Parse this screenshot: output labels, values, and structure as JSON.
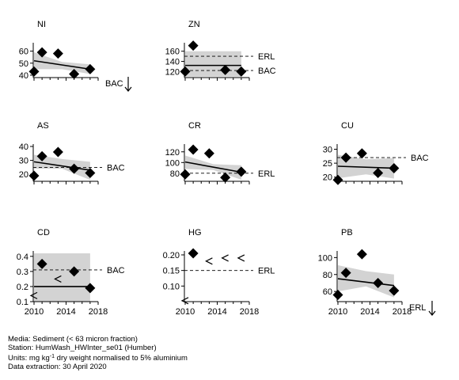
{
  "chart_data": [
    {
      "type": "scatter",
      "title": "NI",
      "ylim": [
        38,
        65
      ],
      "yticks": [
        40,
        50,
        60
      ],
      "xlim": [
        2009.9,
        2018
      ],
      "xticks": [],
      "points": [
        [
          2010,
          43
        ],
        [
          2011,
          59
        ],
        [
          2013,
          58
        ],
        [
          2015,
          41
        ],
        [
          2017,
          45
        ]
      ],
      "trend": [
        [
          2010,
          52
        ],
        [
          2017,
          45
        ]
      ],
      "band_upper": [
        [
          2010,
          59
        ],
        [
          2013.5,
          51
        ],
        [
          2017,
          49
        ]
      ],
      "band_lower": [
        [
          2010,
          45
        ],
        [
          2013.5,
          45
        ],
        [
          2017,
          41
        ]
      ],
      "ref_lines": [],
      "ref_label": "BAC",
      "arrow": "down"
    },
    {
      "type": "scatter",
      "title": "ZN",
      "ylim": [
        108,
        172
      ],
      "yticks": [
        120,
        140,
        160
      ],
      "xlim": [
        2009.9,
        2018
      ],
      "xticks": [],
      "points": [
        [
          2010,
          120
        ],
        [
          2011,
          171
        ],
        [
          2015,
          123
        ],
        [
          2017,
          120
        ]
      ],
      "trend": [
        [
          2010,
          132
        ],
        [
          2017,
          132
        ]
      ],
      "band_upper": [
        [
          2010,
          160
        ],
        [
          2017,
          160
        ]
      ],
      "band_lower": [
        [
          2010,
          110
        ],
        [
          2017,
          110
        ]
      ],
      "ref_lines": [
        {
          "label": "ERL",
          "value": 150
        },
        {
          "label": "BAC",
          "value": 122
        }
      ]
    },
    {
      "type": "scatter",
      "title": "AS",
      "ylim": [
        15,
        40
      ],
      "yticks": [
        20,
        30,
        40
      ],
      "xlim": [
        2009.9,
        2018
      ],
      "xticks": [],
      "points": [
        [
          2010,
          19
        ],
        [
          2011,
          33
        ],
        [
          2013,
          36
        ],
        [
          2015,
          24
        ],
        [
          2017,
          21
        ]
      ],
      "trend": [
        [
          2010,
          29
        ],
        [
          2017,
          23
        ]
      ],
      "band_upper": [
        [
          2010,
          34
        ],
        [
          2013.5,
          31
        ],
        [
          2017,
          29
        ]
      ],
      "band_lower": [
        [
          2010,
          24
        ],
        [
          2013.5,
          24
        ],
        [
          2017,
          16
        ]
      ],
      "ref_lines": [
        {
          "label": "BAC",
          "value": 25
        }
      ]
    },
    {
      "type": "scatter",
      "title": "CR",
      "ylim": [
        65,
        130
      ],
      "yticks": [
        80,
        100,
        120
      ],
      "xlim": [
        2009.9,
        2018
      ],
      "xticks": [],
      "points": [
        [
          2010,
          78
        ],
        [
          2011,
          124
        ],
        [
          2013,
          117
        ],
        [
          2015,
          72
        ],
        [
          2017,
          83
        ]
      ],
      "trend": [
        [
          2010,
          101
        ],
        [
          2017,
          82
        ]
      ],
      "band_upper": [
        [
          2010,
          113
        ],
        [
          2013.5,
          97
        ],
        [
          2017,
          95
        ]
      ],
      "band_lower": [
        [
          2010,
          88
        ],
        [
          2013.5,
          86
        ],
        [
          2017,
          68
        ]
      ],
      "ref_lines": [
        {
          "label": "ERL",
          "value": 80
        }
      ]
    },
    {
      "type": "scatter",
      "title": "CU",
      "ylim": [
        18.5,
        31
      ],
      "yticks": [
        20,
        25,
        30
      ],
      "xlim": [
        2009.9,
        2018
      ],
      "xticks": [],
      "points": [
        [
          2010,
          19
        ],
        [
          2011,
          27
        ],
        [
          2013,
          28.5
        ],
        [
          2015,
          21.5
        ],
        [
          2017,
          23.2
        ]
      ],
      "trend": [
        [
          2010,
          23.9
        ],
        [
          2017,
          23.2
        ]
      ],
      "band_upper": [
        [
          2010,
          28
        ],
        [
          2013.5,
          26.4
        ],
        [
          2017,
          26.8
        ]
      ],
      "band_lower": [
        [
          2010,
          19.6
        ],
        [
          2013.5,
          21
        ],
        [
          2017,
          19.5
        ]
      ],
      "ref_lines": [
        {
          "label": "BAC",
          "value": 27
        }
      ]
    },
    {
      "type": "scatter",
      "title": "CD",
      "ylim": [
        0.1,
        0.42
      ],
      "yticks": [
        0.1,
        0.2,
        0.3,
        0.4
      ],
      "ytick_labels": [
        "0.1",
        "0.2",
        "0.3",
        "0.4"
      ],
      "xlim": [
        2009.9,
        2018
      ],
      "xticks": [
        2010,
        2014,
        2018
      ],
      "points": [
        [
          2011,
          0.35
        ],
        [
          2015,
          0.3
        ],
        [
          2017,
          0.19
        ]
      ],
      "less_than": [
        [
          2013,
          0.25
        ],
        [
          2010,
          0.14
        ]
      ],
      "trend": [
        [
          2010,
          0.2
        ],
        [
          2017,
          0.2
        ]
      ],
      "band_upper": [
        [
          2010,
          0.42
        ],
        [
          2017,
          0.42
        ]
      ],
      "band_lower": [
        [
          2010,
          0.1
        ],
        [
          2017,
          0.1
        ]
      ],
      "ref_lines": [
        {
          "label": "BAC",
          "value": 0.31
        }
      ]
    },
    {
      "type": "scatter",
      "title": "HG",
      "ylim": [
        0.05,
        0.205
      ],
      "yticks": [
        0.1,
        0.15,
        0.2
      ],
      "ytick_labels": [
        "0.10",
        "0.15",
        "0.20"
      ],
      "xlim": [
        2009.9,
        2018
      ],
      "xticks": [
        2010,
        2014,
        2018
      ],
      "points": [
        [
          2011,
          0.205
        ]
      ],
      "less_than": [
        [
          2013,
          0.18
        ],
        [
          2015,
          0.19
        ],
        [
          2017,
          0.19
        ],
        [
          2010,
          0.053
        ]
      ],
      "trend": [],
      "band_upper": [],
      "band_lower": [],
      "ref_lines": [
        {
          "label": "ERL",
          "value": 0.15
        }
      ]
    },
    {
      "type": "scatter",
      "title": "PB",
      "ylim": [
        48,
        105
      ],
      "yticks": [
        60,
        80,
        100
      ],
      "xlim": [
        2009.9,
        2018
      ],
      "xticks": [
        2010,
        2014,
        2018
      ],
      "points": [
        [
          2010,
          56
        ],
        [
          2011,
          82
        ],
        [
          2013,
          104
        ],
        [
          2015,
          70
        ],
        [
          2017,
          61
        ]
      ],
      "trend": [
        [
          2010,
          75
        ],
        [
          2017,
          67
        ]
      ],
      "band_upper": [
        [
          2010,
          91
        ],
        [
          2013.5,
          84
        ],
        [
          2017,
          80
        ]
      ],
      "band_lower": [
        [
          2010,
          60
        ],
        [
          2013.5,
          66
        ],
        [
          2017,
          53
        ]
      ],
      "ref_lines": [],
      "ref_label": "ERL",
      "arrow": "down"
    }
  ],
  "footer": {
    "media": "Media: Sediment (< 63 micron fraction)",
    "station": "Station: HumWash_HWInter_se01 (Humber)",
    "units_prefix": "Units:  mg kg",
    "units_sup": "-1",
    "units_suffix": " dry weight normalised to 5% aluminium",
    "extraction": "Data extraction: 30 April 2020"
  }
}
